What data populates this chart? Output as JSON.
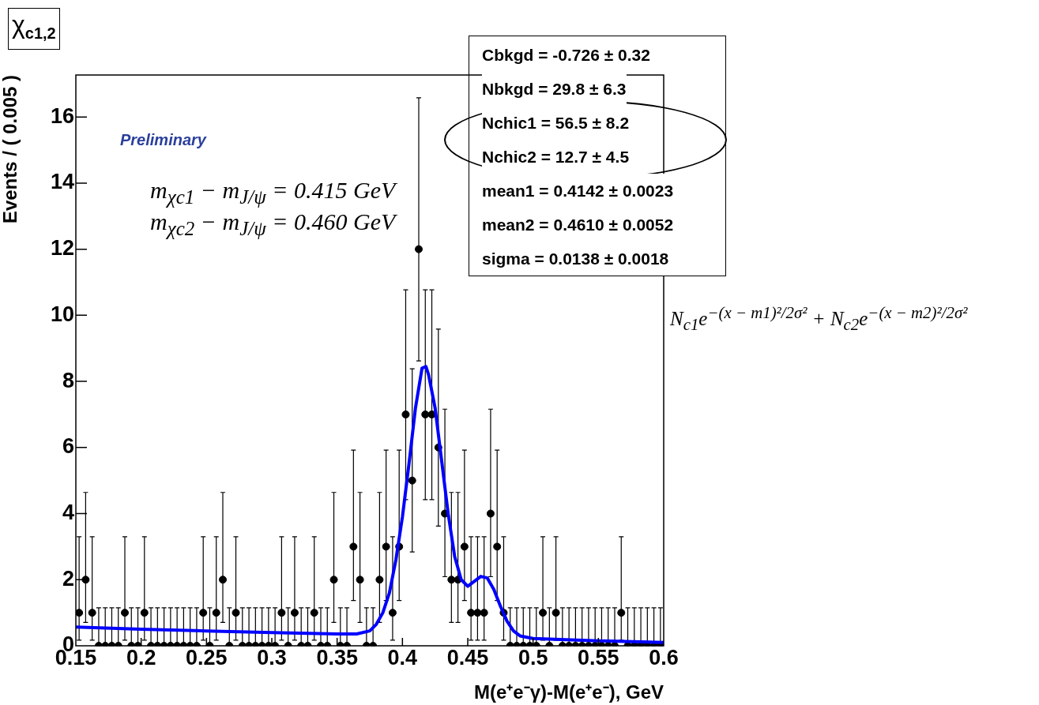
{
  "chart_data": {
    "type": "scatter",
    "title": "χ$_{c1,2}$",
    "xlabel": "M(e⁺e⁻γ)-M(e⁺e⁻), GeV",
    "ylabel": "Events / ( 0.005 )",
    "annotations": [
      "Preliminary",
      "Cbkgd = -0.726  ± 0.32",
      "Nbkgd =  29.8  ± 6.3",
      "Nchic1 =  56.5  ± 8.2",
      "Nchic2 =  12.7  ± 4.5",
      "mean1 =  0.4142  ± 0.0023",
      "mean2 =  0.4610  ± 0.0052",
      "sigma =  0.0138  ± 0.0018",
      "m$_{χc1}$ − m$_{J/ψ}$ = 0.415 GeV",
      "m$_{χc2}$ − m$_{J/ψ}$ = 0.460 GeV",
      "N$_{c1}$e$^{−(x − m1)²/2σ²}$ + N$_{c2}$e$^{−(x − m2)²/2σ²}$"
    ],
    "xlim": [
      0.15,
      0.6
    ],
    "xticks": [
      0.15,
      0.2,
      0.25,
      0.3,
      0.35,
      0.4,
      0.45,
      0.5,
      0.55,
      0.6
    ],
    "ylim": [
      0,
      17.27
    ],
    "yticks": [
      0,
      2,
      4,
      6,
      8,
      10,
      12,
      14,
      16
    ],
    "grid": false,
    "legend": false,
    "marker": "circle",
    "series": [
      {
        "color": "#000000",
        "x": [
          0.1525,
          0.1575,
          0.1625,
          0.1675,
          0.1725,
          0.1775,
          0.1825,
          0.1875,
          0.1925,
          0.1975,
          0.2025,
          0.2075,
          0.2125,
          0.2175,
          0.2225,
          0.2275,
          0.2325,
          0.2375,
          0.2425,
          0.2475,
          0.2525,
          0.2575,
          0.2625,
          0.2675,
          0.2725,
          0.2775,
          0.2825,
          0.2875,
          0.2925,
          0.2975,
          0.3025,
          0.3075,
          0.3125,
          0.3175,
          0.3225,
          0.3275,
          0.3325,
          0.3375,
          0.3425,
          0.3475,
          0.3525,
          0.3575,
          0.3625,
          0.3675,
          0.3725,
          0.3775,
          0.3825,
          0.3875,
          0.3925,
          0.3975,
          0.4025,
          0.4075,
          0.4125,
          0.4175,
          0.4225,
          0.4275,
          0.4325,
          0.4375,
          0.4425,
          0.4475,
          0.4525,
          0.4575,
          0.4625,
          0.4675,
          0.4725,
          0.4775,
          0.4825,
          0.4875,
          0.4925,
          0.4975,
          0.5025,
          0.5075,
          0.5125,
          0.5175,
          0.5225,
          0.5275,
          0.5325,
          0.5375,
          0.5425,
          0.5475,
          0.5525,
          0.5575,
          0.5625,
          0.5675,
          0.5725,
          0.5775,
          0.5825,
          0.5875,
          0.5925,
          0.5975
        ],
        "values": [
          1,
          2,
          1,
          0,
          0,
          0,
          0,
          1,
          0,
          0,
          1,
          0,
          0,
          0,
          0,
          0,
          0,
          0,
          0,
          1,
          0,
          1,
          2,
          0,
          1,
          0,
          0,
          0,
          0,
          0,
          0,
          1,
          0,
          1,
          0,
          0,
          1,
          0,
          0,
          2,
          0,
          0,
          3,
          2,
          0,
          0,
          2,
          3,
          1,
          3,
          7,
          5,
          12,
          7,
          7,
          6,
          4,
          2,
          2,
          3,
          1,
          1,
          1,
          4,
          3,
          1,
          0,
          0,
          0,
          0,
          0,
          1,
          0,
          1,
          0,
          0,
          0,
          0,
          0,
          0,
          0,
          0,
          0,
          1,
          0,
          0,
          0,
          0,
          0,
          0
        ],
        "errors": [
          [
            0.17,
            3.3
          ],
          [
            0.71,
            4.64
          ],
          [
            0.17,
            3.3
          ],
          [
            0,
            1.15
          ],
          [
            0,
            1.15
          ],
          [
            0,
            1.15
          ],
          [
            0,
            1.15
          ],
          [
            0.17,
            3.3
          ],
          [
            0,
            1.15
          ],
          [
            0,
            1.15
          ],
          [
            0.17,
            3.3
          ],
          [
            0,
            1.15
          ],
          [
            0,
            1.15
          ],
          [
            0,
            1.15
          ],
          [
            0,
            1.15
          ],
          [
            0,
            1.15
          ],
          [
            0,
            1.15
          ],
          [
            0,
            1.15
          ],
          [
            0,
            1.15
          ],
          [
            0.17,
            3.3
          ],
          [
            0,
            1.15
          ],
          [
            0.17,
            3.3
          ],
          [
            0.71,
            4.64
          ],
          [
            0,
            1.15
          ],
          [
            0.17,
            3.3
          ],
          [
            0,
            1.15
          ],
          [
            0,
            1.15
          ],
          [
            0,
            1.15
          ],
          [
            0,
            1.15
          ],
          [
            0,
            1.15
          ],
          [
            0,
            1.15
          ],
          [
            0.17,
            3.3
          ],
          [
            0,
            1.15
          ],
          [
            0.17,
            3.3
          ],
          [
            0,
            1.15
          ],
          [
            0,
            1.15
          ],
          [
            0.17,
            3.3
          ],
          [
            0,
            1.15
          ],
          [
            0,
            1.15
          ],
          [
            0.71,
            4.64
          ],
          [
            0,
            1.15
          ],
          [
            0,
            1.15
          ],
          [
            1.37,
            5.92
          ],
          [
            0.71,
            4.64
          ],
          [
            0,
            1.15
          ],
          [
            0,
            1.15
          ],
          [
            0.71,
            4.64
          ],
          [
            1.37,
            5.92
          ],
          [
            0.17,
            3.3
          ],
          [
            1.37,
            5.92
          ],
          [
            4.42,
            10.77
          ],
          [
            2.84,
            8.38
          ],
          [
            8.62,
            16.58
          ],
          [
            4.42,
            10.77
          ],
          [
            4.42,
            10.77
          ],
          [
            3.62,
            9.58
          ],
          [
            2.09,
            7.16
          ],
          [
            0.71,
            4.64
          ],
          [
            0.71,
            4.64
          ],
          [
            1.37,
            5.92
          ],
          [
            0.17,
            3.3
          ],
          [
            0.17,
            3.3
          ],
          [
            0.17,
            3.3
          ],
          [
            2.09,
            7.16
          ],
          [
            1.37,
            5.92
          ],
          [
            0.17,
            3.3
          ],
          [
            0,
            1.15
          ],
          [
            0,
            1.15
          ],
          [
            0,
            1.15
          ],
          [
            0,
            1.15
          ],
          [
            0,
            1.15
          ],
          [
            0.17,
            3.3
          ],
          [
            0,
            1.15
          ],
          [
            0.17,
            3.3
          ],
          [
            0,
            1.15
          ],
          [
            0,
            1.15
          ],
          [
            0,
            1.15
          ],
          [
            0,
            1.15
          ],
          [
            0,
            1.15
          ],
          [
            0,
            1.15
          ],
          [
            0,
            1.15
          ],
          [
            0,
            1.15
          ],
          [
            0,
            1.15
          ],
          [
            0.17,
            3.3
          ],
          [
            0,
            1.15
          ],
          [
            0,
            1.15
          ],
          [
            0,
            1.15
          ],
          [
            0,
            1.15
          ],
          [
            0,
            1.15
          ],
          [
            0,
            1.15
          ]
        ]
      },
      {
        "type": "line",
        "color": "#0000ff",
        "marker": "none",
        "x": [
          0.15,
          0.2,
          0.25,
          0.3,
          0.35,
          0.365,
          0.375,
          0.38,
          0.385,
          0.39,
          0.395,
          0.4,
          0.405,
          0.41,
          0.415,
          0.418,
          0.42,
          0.425,
          0.43,
          0.435,
          0.44,
          0.445,
          0.45,
          0.455,
          0.46,
          0.465,
          0.47,
          0.475,
          0.48,
          0.485,
          0.49,
          0.5,
          0.55,
          0.6
        ],
        "values": [
          0.57,
          0.5,
          0.45,
          0.4,
          0.36,
          0.36,
          0.45,
          0.65,
          1.0,
          1.6,
          2.6,
          3.9,
          5.5,
          7.2,
          8.4,
          8.45,
          8.2,
          7.2,
          5.6,
          4.0,
          2.7,
          2.0,
          1.8,
          1.95,
          2.1,
          2.05,
          1.7,
          1.2,
          0.75,
          0.45,
          0.3,
          0.22,
          0.15,
          0.1
        ]
      }
    ]
  }
}
